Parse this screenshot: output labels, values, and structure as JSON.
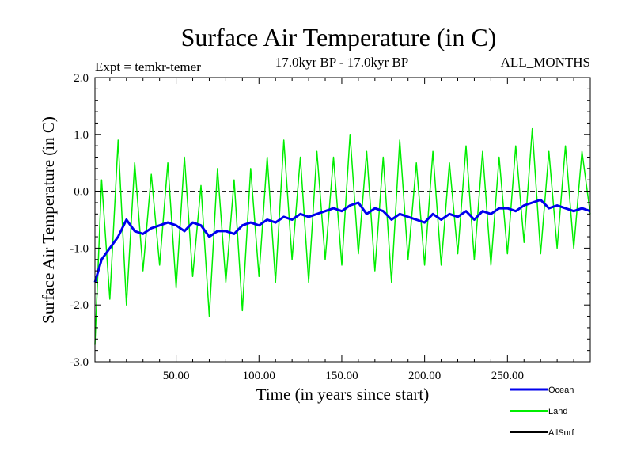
{
  "chart_data": {
    "type": "line",
    "title": "Surface Air Temperature (in C)",
    "subtitle": "17.0kyr BP - 17.0kyr BP",
    "experiment": "Expt = temkr-temer",
    "months": "ALL_MONTHS",
    "xlabel": "Time (in years since start)",
    "ylabel": "Surface Air Temperature (in C)",
    "xlim": [
      1,
      300
    ],
    "ylim": [
      -3.0,
      2.0
    ],
    "x_ticks": [
      50,
      100,
      150,
      200,
      250
    ],
    "x_tick_labels": [
      "50.00",
      "100.00",
      "150.00",
      "200.00",
      "250.00"
    ],
    "y_ticks": [
      -3.0,
      -2.0,
      -1.0,
      0.0,
      1.0,
      2.0
    ],
    "y_tick_labels": [
      "-3.0",
      "-2.0",
      "-1.0",
      "0.0",
      "1.0",
      "2.0"
    ],
    "reference_line": 0.0,
    "grid": false,
    "legend_position": "bottom-right",
    "series": [
      {
        "name": "Ocean",
        "color": "#0000ee",
        "x": [
          1,
          5,
          10,
          15,
          20,
          25,
          30,
          35,
          40,
          45,
          50,
          55,
          60,
          65,
          70,
          75,
          80,
          85,
          90,
          95,
          100,
          105,
          110,
          115,
          120,
          125,
          130,
          135,
          140,
          145,
          150,
          155,
          160,
          165,
          170,
          175,
          180,
          185,
          190,
          195,
          200,
          205,
          210,
          215,
          220,
          225,
          230,
          235,
          240,
          245,
          250,
          255,
          260,
          265,
          270,
          275,
          280,
          285,
          290,
          295,
          300
        ],
        "values": [
          -1.6,
          -1.2,
          -1.0,
          -0.8,
          -0.5,
          -0.7,
          -0.75,
          -0.65,
          -0.6,
          -0.55,
          -0.6,
          -0.7,
          -0.55,
          -0.6,
          -0.8,
          -0.7,
          -0.7,
          -0.75,
          -0.6,
          -0.55,
          -0.6,
          -0.5,
          -0.55,
          -0.45,
          -0.5,
          -0.4,
          -0.45,
          -0.4,
          -0.35,
          -0.3,
          -0.35,
          -0.25,
          -0.2,
          -0.4,
          -0.3,
          -0.35,
          -0.5,
          -0.4,
          -0.45,
          -0.5,
          -0.55,
          -0.4,
          -0.5,
          -0.4,
          -0.45,
          -0.35,
          -0.5,
          -0.35,
          -0.4,
          -0.3,
          -0.3,
          -0.35,
          -0.25,
          -0.2,
          -0.15,
          -0.3,
          -0.25,
          -0.3,
          -0.35,
          -0.3,
          -0.35
        ]
      },
      {
        "name": "Land",
        "color": "#00ee00",
        "x": [
          1,
          5,
          10,
          15,
          20,
          25,
          30,
          35,
          40,
          45,
          50,
          55,
          60,
          65,
          70,
          75,
          80,
          85,
          90,
          95,
          100,
          105,
          110,
          115,
          120,
          125,
          130,
          135,
          140,
          145,
          150,
          155,
          160,
          165,
          170,
          175,
          180,
          185,
          190,
          195,
          200,
          205,
          210,
          215,
          220,
          225,
          230,
          235,
          240,
          245,
          250,
          255,
          260,
          265,
          270,
          275,
          280,
          285,
          290,
          295,
          300
        ],
        "values": [
          -2.7,
          0.2,
          -1.9,
          0.9,
          -2.0,
          0.5,
          -1.4,
          0.3,
          -1.3,
          0.5,
          -1.7,
          0.6,
          -1.5,
          0.1,
          -2.2,
          0.4,
          -1.6,
          0.2,
          -2.1,
          0.4,
          -1.5,
          0.6,
          -1.6,
          0.9,
          -1.2,
          0.6,
          -1.6,
          0.7,
          -1.2,
          0.6,
          -1.3,
          1.0,
          -1.1,
          0.7,
          -1.4,
          0.6,
          -1.6,
          0.9,
          -1.2,
          0.5,
          -1.3,
          0.7,
          -1.3,
          0.5,
          -1.1,
          0.8,
          -1.2,
          0.7,
          -1.3,
          0.6,
          -1.1,
          0.8,
          -0.9,
          1.1,
          -1.1,
          0.7,
          -1.0,
          0.8,
          -1.0,
          0.7,
          -0.4
        ]
      },
      {
        "name": "AllSurf",
        "color": "#000000",
        "x": [],
        "values": []
      }
    ]
  }
}
